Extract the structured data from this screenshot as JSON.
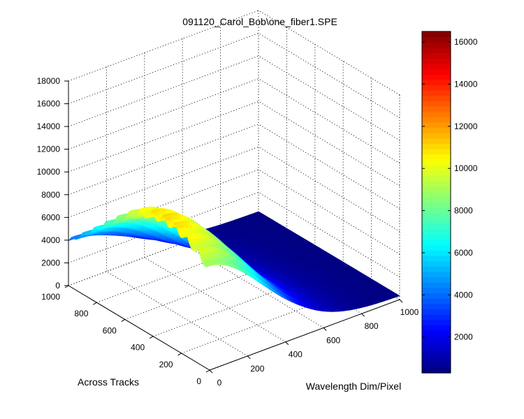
{
  "chart_data": {
    "type": "surface",
    "title": "091120_Carol_Bob\\one_fiber1.SPE",
    "xlabel": "Wavelength Dim/Pixel",
    "ylabel": "Across Tracks",
    "zlabel": "",
    "xlim": [
      0,
      1000
    ],
    "ylim": [
      0,
      1000
    ],
    "zlim": [
      0,
      18000
    ],
    "x_ticks": [
      "0",
      "200",
      "400",
      "600",
      "800",
      "1000"
    ],
    "y_ticks": [
      "0",
      "200",
      "400",
      "600",
      "800",
      "1000"
    ],
    "z_ticks": [
      "0",
      "2000",
      "4000",
      "6000",
      "8000",
      "10000",
      "12000",
      "14000",
      "16000",
      "18000"
    ],
    "grid": true,
    "colormap": "jet",
    "colorbar": {
      "min": 300,
      "max": 16500,
      "ticks": [
        "2000",
        "4000",
        "6000",
        "8000",
        "10000",
        "12000",
        "14000",
        "16000"
      ]
    },
    "surface": {
      "baseline": 300,
      "peak_value": 11000,
      "peak_x": 0,
      "peak_y": 310,
      "spread_x": 420,
      "spread_y": 1000,
      "step_x": 10,
      "step_y": 10
    }
  }
}
